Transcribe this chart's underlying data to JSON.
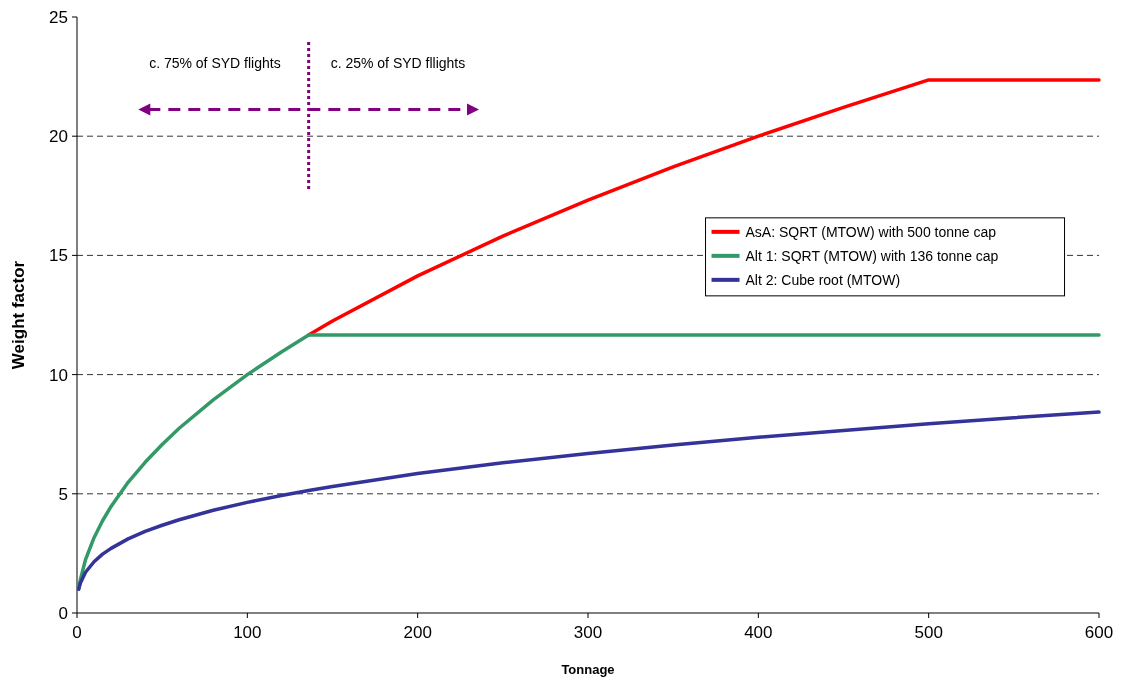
{
  "chart_data": {
    "type": "line",
    "xlabel": "Tonnage",
    "ylabel": "Weight factor",
    "xlim": [
      0,
      600
    ],
    "ylim": [
      0,
      25
    ],
    "xticks": [
      0,
      100,
      200,
      300,
      400,
      500,
      600
    ],
    "yticks": [
      0,
      5,
      10,
      15,
      20,
      25
    ],
    "grid": "y",
    "legend": "right",
    "marker": "none",
    "line_style": "solid",
    "x": [
      1,
      2,
      5,
      10,
      15,
      20,
      30,
      40,
      50,
      60,
      80,
      100,
      120,
      136,
      150,
      200,
      250,
      300,
      350,
      400,
      450,
      500,
      550,
      600
    ],
    "series": [
      {
        "name": "AsA: SQRT (MTOW) with 500 tonne cap",
        "color": "#ff0000",
        "values": [
          null,
          null,
          null,
          null,
          null,
          null,
          null,
          null,
          null,
          null,
          null,
          null,
          null,
          11.66,
          12.25,
          14.14,
          15.81,
          17.32,
          18.71,
          20,
          21.21,
          22.36,
          22.36,
          22.36
        ]
      },
      {
        "name": "Alt 1: SQRT (MTOW) with 136 tonne cap",
        "color": "#339966",
        "values": [
          1,
          1.41,
          2.24,
          3.16,
          3.87,
          4.47,
          5.48,
          6.32,
          7.07,
          7.75,
          8.94,
          10,
          10.95,
          11.66,
          11.66,
          11.66,
          11.66,
          11.66,
          11.66,
          11.66,
          11.66,
          11.66,
          11.66,
          11.66
        ]
      },
      {
        "name": "Alt 2: Cube root (MTOW)",
        "color": "#333399",
        "values": [
          1,
          1.26,
          1.71,
          2.15,
          2.47,
          2.71,
          3.11,
          3.42,
          3.68,
          3.91,
          4.31,
          4.64,
          4.93,
          5.14,
          5.31,
          5.85,
          6.3,
          6.69,
          7.05,
          7.37,
          7.66,
          7.94,
          8.19,
          8.43
        ]
      }
    ],
    "ref_lines": [
      {
        "axis": "x",
        "value": 136,
        "color": "#800080",
        "line_style": "dotted"
      }
    ],
    "annotations": [
      "c. 75% of SYD flights",
      "c. 25% of SYD fllights"
    ]
  }
}
